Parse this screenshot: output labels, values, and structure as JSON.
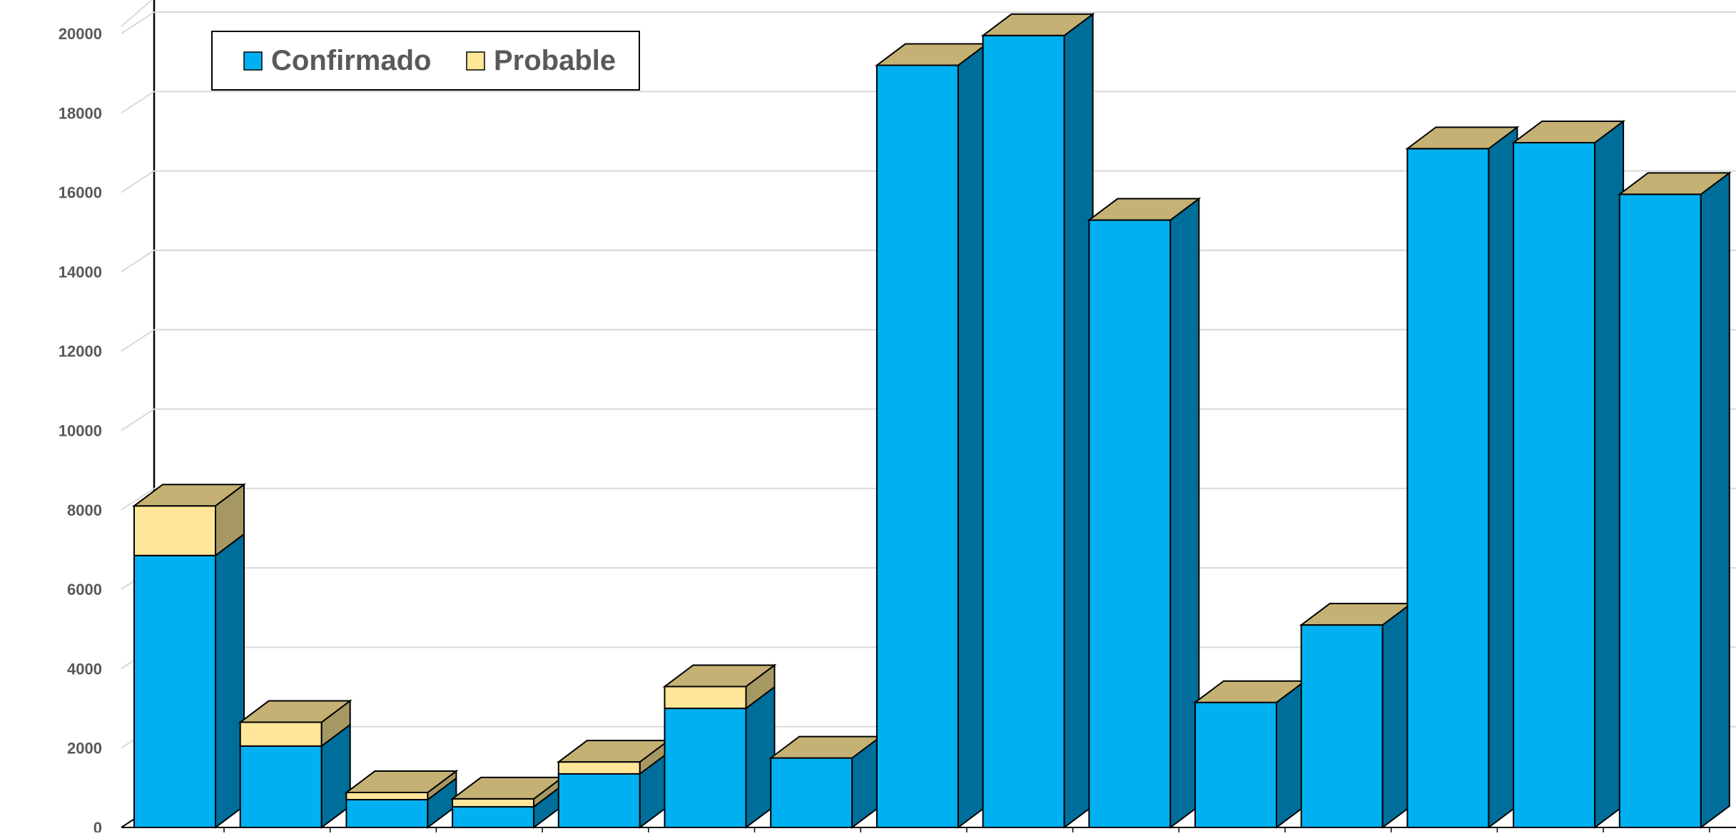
{
  "chart_data": {
    "type": "bar",
    "stacked": true,
    "three_d": true,
    "series": [
      {
        "name": "Confirmado",
        "color": "#00B0F0",
        "values": [
          6850,
          2050,
          700,
          520,
          1350,
          3000,
          1750,
          19200,
          19950,
          15300,
          3150,
          5100,
          17100,
          17250,
          15950
        ]
      },
      {
        "name": "Probable",
        "color": "#FFE699",
        "values": [
          1250,
          600,
          180,
          200,
          300,
          550,
          0,
          0,
          0,
          0,
          0,
          0,
          0,
          0,
          0
        ]
      }
    ],
    "categories": [
      "",
      "",
      "",
      "",
      "",
      "",
      "",
      "",
      "",
      "",
      "",
      "",
      "",
      "",
      ""
    ],
    "y_ticks": [
      "0",
      "2000",
      "4000",
      "6000",
      "8000",
      "10000",
      "12000",
      "14000",
      "16000",
      "18000",
      "20000"
    ],
    "ylim": [
      0,
      20000
    ],
    "grid": true,
    "legend_position": "top-left",
    "side_color": "#006E9A",
    "top_color": "#C4B173",
    "probable_side_color": "#A69863"
  }
}
